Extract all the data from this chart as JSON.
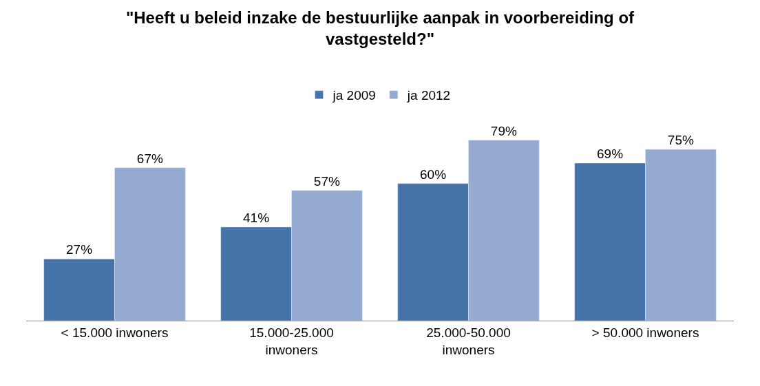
{
  "chart_data": {
    "type": "bar",
    "title": "\"Heeft u beleid inzake de bestuurlijke aanpak in voorbereiding of vastgesteld?\"",
    "categories": [
      "< 15.000 inwoners",
      "15.000-25.000 inwoners",
      "25.000-50.000 inwoners",
      "> 50.000 inwoners"
    ],
    "series": [
      {
        "name": "ja 2009",
        "color": "#4573a7",
        "values": [
          27,
          41,
          60,
          69
        ],
        "value_labels": [
          "27%",
          "41%",
          "60%",
          "69%"
        ]
      },
      {
        "name": "ja 2012",
        "color": "#95aad1",
        "values": [
          67,
          57,
          79,
          75
        ],
        "value_labels": [
          "67%",
          "57%",
          "79%",
          "75%"
        ]
      }
    ],
    "legend": "top"
  }
}
